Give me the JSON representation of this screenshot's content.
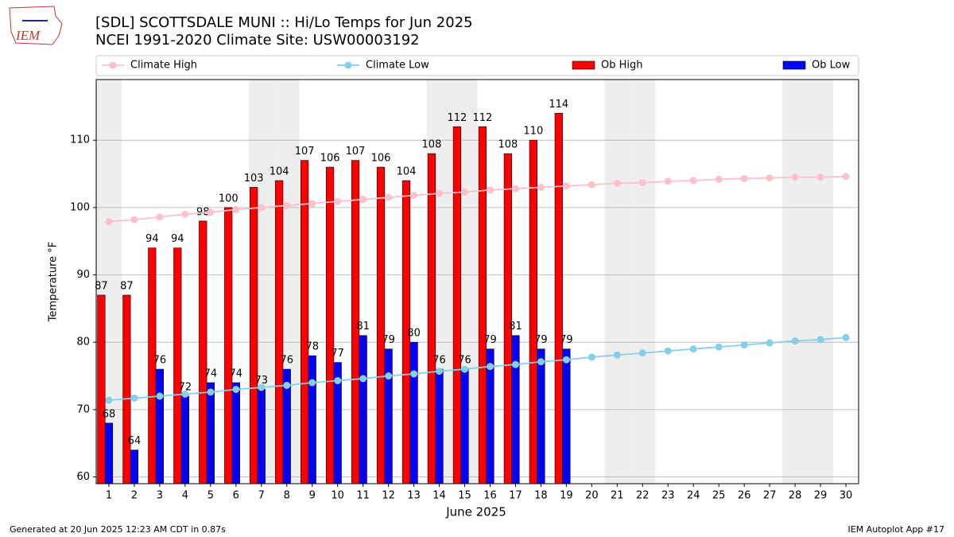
{
  "logo_text": "IEM",
  "footer_left": "Generated at 20 Jun 2025 12:23 AM CDT in 0.87s",
  "footer_right": "IEM Autoplot App #17",
  "chart_data": {
    "type": "bar",
    "title": "[SDL] SCOTTSDALE MUNI :: Hi/Lo Temps for Jun 2025",
    "subtitle": "NCEI 1991-2020 Climate Site: USW00003192",
    "xlabel": "June 2025",
    "ylabel": "Temperature °F",
    "x": [
      1,
      2,
      3,
      4,
      5,
      6,
      7,
      8,
      9,
      10,
      11,
      12,
      13,
      14,
      15,
      16,
      17,
      18,
      19,
      20,
      21,
      22,
      23,
      24,
      25,
      26,
      27,
      28,
      29,
      30
    ],
    "xlim": [
      0.5,
      30.5
    ],
    "xticks": [
      1,
      2,
      3,
      4,
      5,
      6,
      7,
      8,
      9,
      10,
      11,
      12,
      13,
      14,
      15,
      16,
      17,
      18,
      19,
      20,
      21,
      22,
      23,
      24,
      25,
      26,
      27,
      28,
      29,
      30
    ],
    "ylim": [
      59,
      119
    ],
    "yticks": [
      60,
      70,
      80,
      90,
      100,
      110
    ],
    "grid": true,
    "shaded_days": [
      1,
      7,
      8,
      14,
      15,
      21,
      22,
      28,
      29
    ],
    "shade_color": "#eeeeee",
    "legend": "top",
    "series": [
      {
        "name": "Climate High",
        "type": "line",
        "color": "#ffc0cb",
        "values": [
          97.9,
          98.2,
          98.6,
          99.0,
          99.3,
          99.7,
          100.0,
          100.3,
          100.6,
          100.9,
          101.2,
          101.5,
          101.8,
          102.1,
          102.3,
          102.6,
          102.8,
          103.0,
          103.2,
          103.4,
          103.6,
          103.7,
          103.9,
          104.0,
          104.2,
          104.3,
          104.4,
          104.5,
          104.5,
          104.6
        ]
      },
      {
        "name": "Climate Low",
        "type": "line",
        "color": "#87ceeb",
        "values": [
          71.4,
          71.7,
          72.0,
          72.3,
          72.6,
          73.0,
          73.3,
          73.6,
          74.0,
          74.3,
          74.6,
          75.0,
          75.3,
          75.7,
          76.0,
          76.4,
          76.7,
          77.1,
          77.4,
          77.8,
          78.1,
          78.4,
          78.7,
          79.0,
          79.3,
          79.6,
          79.9,
          80.2,
          80.4,
          80.7
        ]
      },
      {
        "name": "Ob High",
        "type": "bar",
        "color": "#ff0000",
        "values": [
          87,
          87,
          94,
          94,
          98,
          100,
          103,
          104,
          107,
          106,
          107,
          106,
          104,
          108,
          112,
          112,
          108,
          110,
          114,
          null,
          null,
          null,
          null,
          null,
          null,
          null,
          null,
          null,
          null,
          null
        ]
      },
      {
        "name": "Ob Low",
        "type": "bar",
        "color": "#0000ff",
        "values": [
          68,
          64,
          76,
          72,
          74,
          74,
          73,
          76,
          78,
          77,
          81,
          79,
          80,
          76,
          76,
          79,
          81,
          79,
          79,
          null,
          null,
          null,
          null,
          null,
          null,
          null,
          null,
          null,
          null,
          null
        ]
      }
    ]
  }
}
